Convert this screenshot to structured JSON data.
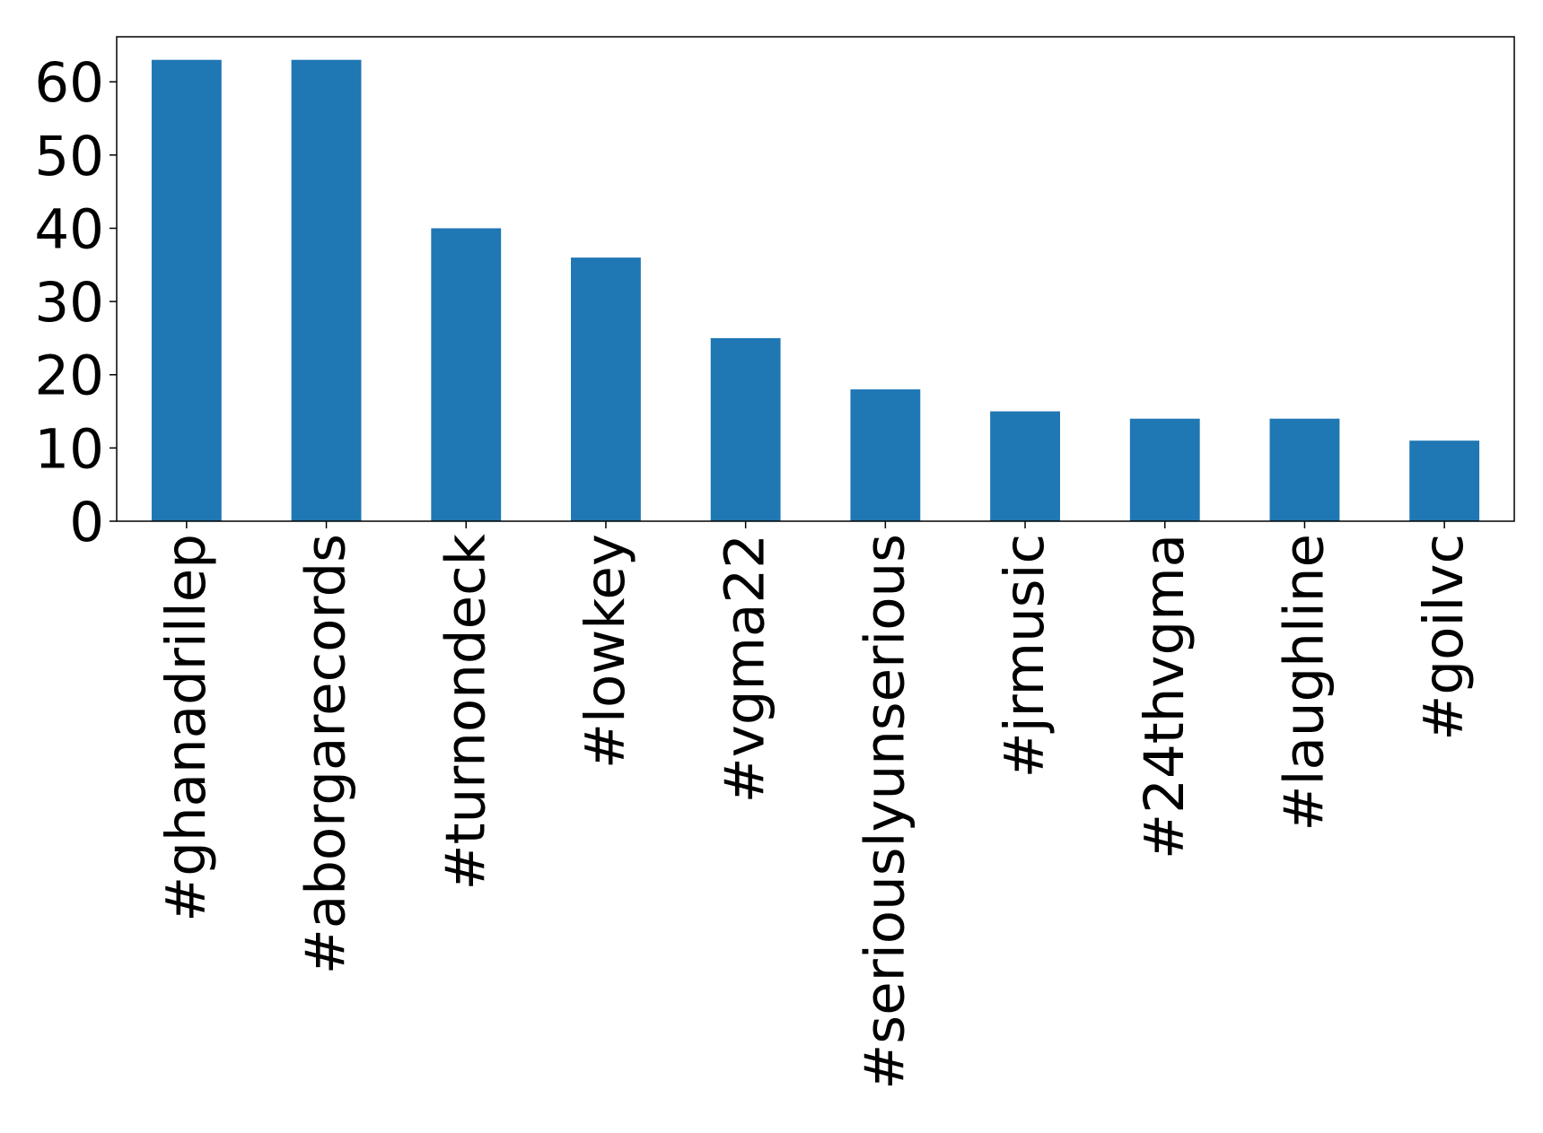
{
  "chart_data": {
    "type": "bar",
    "title": "",
    "xlabel": "",
    "ylabel": "",
    "categories": [
      "#ghanadrillep",
      "#aborgarecords",
      "#turnondeck",
      "#lowkey",
      "#vgma22",
      "#seriouslyunserious",
      "#jrmusic",
      "#24thvgma",
      "#laughline",
      "#goilvc"
    ],
    "values": [
      63,
      63,
      40,
      36,
      25,
      18,
      15,
      14,
      14,
      11
    ],
    "ylim": [
      0,
      66.15
    ],
    "yticks": [
      0,
      10,
      20,
      30,
      40,
      50,
      60
    ],
    "bar_color": "#1f77b4",
    "grid": false,
    "legend": "none"
  }
}
